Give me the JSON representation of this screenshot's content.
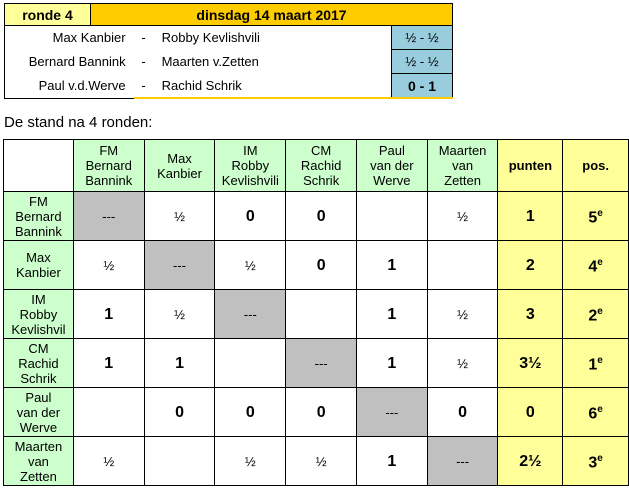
{
  "round": {
    "label": "ronde 4",
    "date": "dinsdag 14 maart 2017",
    "games": [
      {
        "white": "Max Kanbier",
        "sep": "-",
        "black": "Robby Kevlishvili",
        "result": "½ - ½"
      },
      {
        "white": "Bernard Bannink",
        "sep": "-",
        "black": "Maarten v.Zetten",
        "result": "½ - ½"
      },
      {
        "white": "Paul v.d.Werve",
        "sep": "-",
        "black": "Rachid Schrik",
        "result": "0 - 1"
      }
    ]
  },
  "caption": "De stand na 4 ronden:",
  "standings": {
    "columns": [
      "FM\nBernard\nBannink",
      "Max\nKanbier",
      "IM\nRobby\nKevlishvili",
      "CM\nRachid\nSchrik",
      "Paul\nvan der\nWerve",
      "Maarten\nvan\nZetten"
    ],
    "points_header": "punten",
    "pos_header": "pos.",
    "rows": [
      {
        "name": "FM\nBernard\nBannink",
        "cells": [
          "---",
          "½",
          "0",
          "0",
          "",
          "½"
        ],
        "points": "1",
        "pos": "5",
        "pos_suffix": "e"
      },
      {
        "name": "Max\nKanbier",
        "cells": [
          "½",
          "---",
          "½",
          "0",
          "1",
          ""
        ],
        "points": "2",
        "pos": "4",
        "pos_suffix": "e"
      },
      {
        "name": "IM\nRobby\nKevlishvil",
        "cells": [
          "1",
          "½",
          "---",
          "",
          "1",
          "½"
        ],
        "points": "3",
        "pos": "2",
        "pos_suffix": "e"
      },
      {
        "name": "CM\nRachid\nSchrik",
        "cells": [
          "1",
          "1",
          "",
          "---",
          "1",
          "½"
        ],
        "points": "3½",
        "pos": "1",
        "pos_suffix": "e"
      },
      {
        "name": "Paul\nvan der\nWerve",
        "cells": [
          "",
          "0",
          "0",
          "0",
          "---",
          "0"
        ],
        "points": "0",
        "pos": "6",
        "pos_suffix": "e"
      },
      {
        "name": "Maarten\nvan\nZetten",
        "cells": [
          "½",
          "",
          "½",
          "½",
          "1",
          "---"
        ],
        "points": "2½",
        "pos": "3",
        "pos_suffix": "e"
      }
    ]
  },
  "colors": {
    "header_green": "#ccffcc",
    "score_yellow": "#ffff99",
    "date_orange": "#ffcc00",
    "result_blue": "#99ccdd",
    "diagonal_gray": "#c0c0c0"
  }
}
